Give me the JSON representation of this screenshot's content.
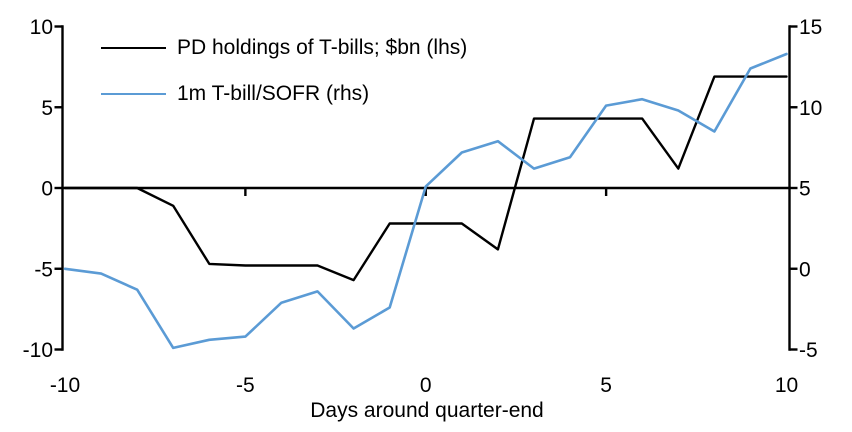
{
  "chart_data": {
    "type": "line",
    "title": "",
    "xlabel": "Days around quarter-end",
    "grid": false,
    "legend_position": "top-left",
    "x": [
      -10,
      -9,
      -8,
      -7,
      -6,
      -5,
      -4,
      -3,
      -2,
      -1,
      0,
      1,
      2,
      3,
      4,
      5,
      6,
      7,
      8,
      9,
      10
    ],
    "x_axis": {
      "min": -10,
      "max": 10,
      "tick_labels": [
        -10,
        -5,
        0,
        5,
        10
      ],
      "tick_marks_on_zero_line": [
        -5,
        0,
        5
      ]
    },
    "left_axis": {
      "min": -10,
      "max": 10,
      "ticks": [
        10,
        5,
        0,
        -5,
        -10
      ]
    },
    "right_axis": {
      "min": -5,
      "max": 15,
      "ticks": [
        15,
        10,
        5,
        0,
        -5
      ]
    },
    "series": [
      {
        "name": "PD holdings of T-bills; $bn (lhs)",
        "axis": "left",
        "color": "#000000",
        "values": [
          0,
          0,
          0,
          -1.1,
          -4.7,
          -4.8,
          -4.8,
          -4.8,
          -5.7,
          -2.2,
          -2.2,
          -2.2,
          -3.8,
          4.3,
          4.3,
          4.3,
          4.3,
          1.2,
          6.9,
          6.9,
          6.9
        ]
      },
      {
        "name": "1m T-bill/SOFR (rhs)",
        "axis": "right",
        "color": "#5B9BD5",
        "values": [
          0.0,
          -0.3,
          -1.3,
          -4.9,
          -4.4,
          -4.2,
          -2.1,
          -1.4,
          -3.7,
          -2.4,
          5.1,
          7.2,
          7.9,
          6.2,
          6.9,
          10.1,
          10.5,
          9.8,
          8.5,
          12.4,
          13.3
        ]
      }
    ],
    "colors": {
      "accent_blue": "#5B9BD5",
      "line_black": "#000000",
      "background": "#ffffff"
    }
  }
}
